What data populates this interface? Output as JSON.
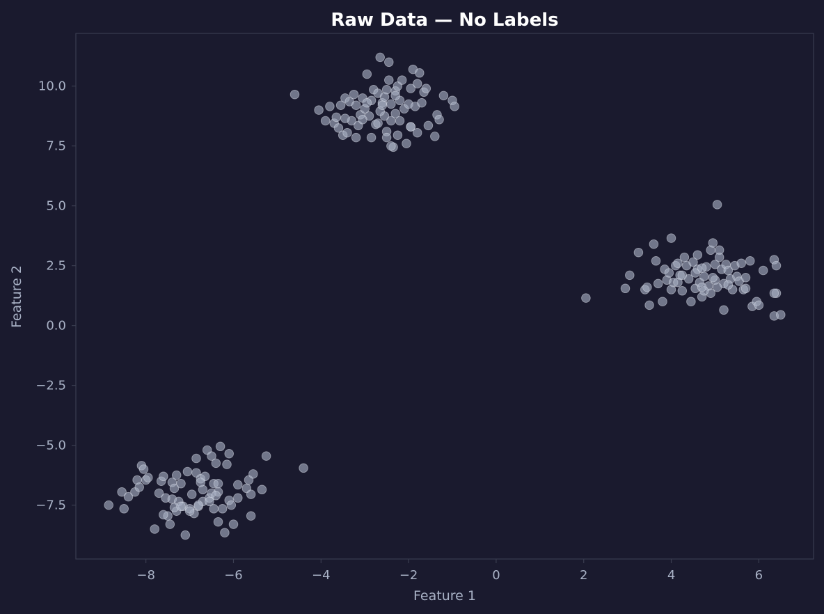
{
  "chart_data": {
    "type": "scatter",
    "title": "Raw Data — No Labels",
    "xlabel": "Feature 1",
    "ylabel": "Feature 2",
    "xlim": [
      -9.6,
      7.25
    ],
    "ylim": [
      -9.75,
      12.2
    ],
    "xticks": [
      -8,
      -6,
      -4,
      -2,
      0,
      2,
      4,
      6
    ],
    "xtick_labels": [
      "−8",
      "−6",
      "−4",
      "−2",
      "0",
      "2",
      "4",
      "6"
    ],
    "yticks": [
      -7.5,
      -5.0,
      -2.5,
      0.0,
      2.5,
      5.0,
      7.5,
      10.0
    ],
    "ytick_labels": [
      "−7.5",
      "−5.0",
      "−2.5",
      "0.0",
      "2.5",
      "5.0",
      "7.5",
      "10.0"
    ],
    "grid": false,
    "colors": {
      "background": "#1a1a2e",
      "point": "#a8b0c4",
      "point_edge": "#dfe4ee",
      "frame": "#3a3d50",
      "text": "#a9b2c6",
      "title": "#ffffff"
    },
    "series": [
      {
        "points": [
          [
            -4.6,
            9.65
          ],
          [
            -4.05,
            9.0
          ],
          [
            -3.9,
            8.55
          ],
          [
            -3.8,
            9.15
          ],
          [
            -3.7,
            8.45
          ],
          [
            -3.65,
            8.7
          ],
          [
            -3.6,
            8.25
          ],
          [
            -3.55,
            9.2
          ],
          [
            -3.5,
            7.95
          ],
          [
            -3.45,
            9.5
          ],
          [
            -3.4,
            8.05
          ],
          [
            -3.35,
            9.35
          ],
          [
            -3.3,
            8.55
          ],
          [
            -3.25,
            9.65
          ],
          [
            -3.2,
            9.2
          ],
          [
            -3.2,
            7.85
          ],
          [
            -3.15,
            8.35
          ],
          [
            -3.1,
            8.8
          ],
          [
            -3.05,
            9.5
          ],
          [
            -3.0,
            9.05
          ],
          [
            -2.95,
            10.5
          ],
          [
            -2.9,
            8.75
          ],
          [
            -2.85,
            9.4
          ],
          [
            -2.8,
            9.85
          ],
          [
            -2.75,
            8.4
          ],
          [
            -2.7,
            9.7
          ],
          [
            -2.65,
            11.2
          ],
          [
            -2.6,
            9.3
          ],
          [
            -2.55,
            8.75
          ],
          [
            -2.5,
            9.85
          ],
          [
            -2.5,
            8.1
          ],
          [
            -2.45,
            10.25
          ],
          [
            -2.4,
            9.25
          ],
          [
            -2.4,
            8.55
          ],
          [
            -2.35,
            7.45
          ],
          [
            -2.3,
            9.8
          ],
          [
            -2.3,
            8.85
          ],
          [
            -2.25,
            10.0
          ],
          [
            -2.25,
            7.95
          ],
          [
            -2.2,
            9.4
          ],
          [
            -2.2,
            8.55
          ],
          [
            -2.15,
            10.25
          ],
          [
            -2.1,
            9.05
          ],
          [
            -2.05,
            7.6
          ],
          [
            -2.0,
            9.25
          ],
          [
            -1.95,
            8.3
          ],
          [
            -1.9,
            10.7
          ],
          [
            -1.85,
            9.15
          ],
          [
            -1.8,
            10.1
          ],
          [
            -1.8,
            8.05
          ],
          [
            -1.75,
            10.55
          ],
          [
            -1.7,
            9.3
          ],
          [
            -1.65,
            9.75
          ],
          [
            -1.6,
            9.9
          ],
          [
            -1.55,
            8.35
          ],
          [
            -1.4,
            7.9
          ],
          [
            -1.35,
            8.8
          ],
          [
            -1.3,
            8.6
          ],
          [
            -1.2,
            9.6
          ],
          [
            -1.0,
            9.4
          ],
          [
            -0.95,
            9.15
          ],
          [
            -2.45,
            11.0
          ],
          [
            -2.95,
            9.3
          ],
          [
            -2.55,
            9.55
          ],
          [
            -2.65,
            8.95
          ],
          [
            -3.45,
            8.65
          ],
          [
            -2.5,
            7.85
          ],
          [
            -1.95,
            8.3
          ],
          [
            -2.3,
            9.6
          ],
          [
            -2.85,
            7.85
          ],
          [
            -3.05,
            8.6
          ],
          [
            -2.6,
            9.2
          ],
          [
            -2.4,
            7.5
          ],
          [
            -2.7,
            8.45
          ],
          [
            -1.95,
            9.9
          ]
        ]
      },
      {
        "points": [
          [
            2.05,
            1.15
          ],
          [
            2.95,
            1.55
          ],
          [
            3.05,
            2.1
          ],
          [
            3.25,
            3.05
          ],
          [
            3.4,
            1.5
          ],
          [
            3.45,
            1.6
          ],
          [
            3.5,
            0.85
          ],
          [
            3.6,
            3.4
          ],
          [
            3.65,
            2.7
          ],
          [
            3.7,
            1.75
          ],
          [
            3.8,
            1.0
          ],
          [
            3.85,
            2.35
          ],
          [
            3.9,
            1.9
          ],
          [
            3.95,
            2.2
          ],
          [
            4.0,
            3.65
          ],
          [
            4.0,
            1.5
          ],
          [
            4.05,
            1.8
          ],
          [
            4.1,
            2.5
          ],
          [
            4.15,
            2.6
          ],
          [
            4.2,
            2.1
          ],
          [
            4.25,
            1.45
          ],
          [
            4.3,
            2.85
          ],
          [
            4.35,
            2.5
          ],
          [
            4.4,
            1.95
          ],
          [
            4.45,
            1.0
          ],
          [
            4.5,
            2.65
          ],
          [
            4.55,
            1.55
          ],
          [
            4.6,
            2.95
          ],
          [
            4.6,
            2.35
          ],
          [
            4.65,
            1.8
          ],
          [
            4.7,
            1.2
          ],
          [
            4.75,
            2.05
          ],
          [
            4.8,
            2.45
          ],
          [
            4.85,
            1.65
          ],
          [
            4.9,
            3.15
          ],
          [
            4.9,
            1.35
          ],
          [
            4.95,
            3.45
          ],
          [
            5.0,
            2.55
          ],
          [
            5.0,
            1.9
          ],
          [
            5.05,
            5.05
          ],
          [
            5.1,
            3.15
          ],
          [
            5.1,
            2.85
          ],
          [
            5.15,
            2.35
          ],
          [
            5.2,
            1.75
          ],
          [
            5.2,
            0.65
          ],
          [
            5.25,
            2.55
          ],
          [
            5.3,
            2.3
          ],
          [
            5.35,
            1.95
          ],
          [
            5.4,
            1.5
          ],
          [
            5.45,
            2.5
          ],
          [
            5.5,
            2.05
          ],
          [
            5.55,
            1.85
          ],
          [
            5.6,
            2.6
          ],
          [
            5.65,
            1.5
          ],
          [
            5.7,
            2.0
          ],
          [
            5.8,
            2.7
          ],
          [
            5.85,
            0.8
          ],
          [
            5.95,
            1.0
          ],
          [
            6.0,
            0.85
          ],
          [
            6.1,
            2.3
          ],
          [
            6.35,
            2.75
          ],
          [
            6.35,
            0.4
          ],
          [
            6.4,
            2.5
          ],
          [
            6.4,
            1.35
          ],
          [
            6.5,
            0.45
          ],
          [
            4.25,
            2.1
          ],
          [
            4.75,
            1.45
          ],
          [
            5.05,
            1.6
          ],
          [
            4.55,
            2.2
          ],
          [
            4.7,
            1.6
          ],
          [
            4.95,
            2.0
          ],
          [
            5.3,
            1.7
          ],
          [
            4.15,
            1.8
          ],
          [
            5.7,
            1.55
          ],
          [
            6.35,
            1.35
          ],
          [
            4.7,
            2.4
          ]
        ]
      },
      {
        "points": [
          [
            -8.85,
            -7.5
          ],
          [
            -8.55,
            -6.95
          ],
          [
            -8.5,
            -7.65
          ],
          [
            -8.4,
            -7.15
          ],
          [
            -8.25,
            -6.95
          ],
          [
            -8.2,
            -6.45
          ],
          [
            -8.15,
            -6.75
          ],
          [
            -8.1,
            -5.85
          ],
          [
            -8.05,
            -6.0
          ],
          [
            -8.0,
            -6.45
          ],
          [
            -7.95,
            -6.35
          ],
          [
            -7.8,
            -8.5
          ],
          [
            -7.7,
            -7.0
          ],
          [
            -7.65,
            -6.5
          ],
          [
            -7.6,
            -6.3
          ],
          [
            -7.55,
            -7.2
          ],
          [
            -7.5,
            -7.95
          ],
          [
            -7.45,
            -8.3
          ],
          [
            -7.4,
            -7.25
          ],
          [
            -7.4,
            -6.55
          ],
          [
            -7.35,
            -6.8
          ],
          [
            -7.3,
            -6.25
          ],
          [
            -7.3,
            -7.75
          ],
          [
            -7.25,
            -7.35
          ],
          [
            -7.2,
            -6.6
          ],
          [
            -7.15,
            -7.55
          ],
          [
            -7.1,
            -8.75
          ],
          [
            -7.05,
            -6.1
          ],
          [
            -7.0,
            -7.65
          ],
          [
            -6.95,
            -7.05
          ],
          [
            -6.9,
            -7.85
          ],
          [
            -6.85,
            -5.55
          ],
          [
            -6.85,
            -6.15
          ],
          [
            -6.8,
            -7.55
          ],
          [
            -6.75,
            -6.4
          ],
          [
            -6.7,
            -6.85
          ],
          [
            -6.7,
            -7.35
          ],
          [
            -6.65,
            -6.3
          ],
          [
            -6.6,
            -5.2
          ],
          [
            -6.55,
            -7.2
          ],
          [
            -6.5,
            -5.45
          ],
          [
            -6.45,
            -6.6
          ],
          [
            -6.45,
            -7.65
          ],
          [
            -6.4,
            -5.75
          ],
          [
            -6.35,
            -6.95
          ],
          [
            -6.35,
            -8.2
          ],
          [
            -6.3,
            -5.05
          ],
          [
            -6.25,
            -7.65
          ],
          [
            -6.2,
            -8.65
          ],
          [
            -6.15,
            -5.8
          ],
          [
            -6.1,
            -5.35
          ],
          [
            -6.1,
            -7.3
          ],
          [
            -6.05,
            -7.5
          ],
          [
            -6.0,
            -8.3
          ],
          [
            -5.9,
            -6.65
          ],
          [
            -5.9,
            -7.2
          ],
          [
            -5.7,
            -6.8
          ],
          [
            -5.65,
            -6.45
          ],
          [
            -5.6,
            -7.95
          ],
          [
            -5.6,
            -7.05
          ],
          [
            -5.55,
            -6.2
          ],
          [
            -5.35,
            -6.85
          ],
          [
            -5.25,
            -5.45
          ],
          [
            -4.4,
            -5.95
          ],
          [
            -6.8,
            -7.5
          ],
          [
            -7.0,
            -7.75
          ],
          [
            -6.5,
            -7.0
          ],
          [
            -6.35,
            -6.6
          ],
          [
            -7.35,
            -7.6
          ],
          [
            -7.6,
            -7.9
          ],
          [
            -6.75,
            -6.55
          ],
          [
            -6.55,
            -7.35
          ],
          [
            -7.2,
            -7.55
          ],
          [
            -6.4,
            -7.1
          ]
        ]
      }
    ]
  }
}
